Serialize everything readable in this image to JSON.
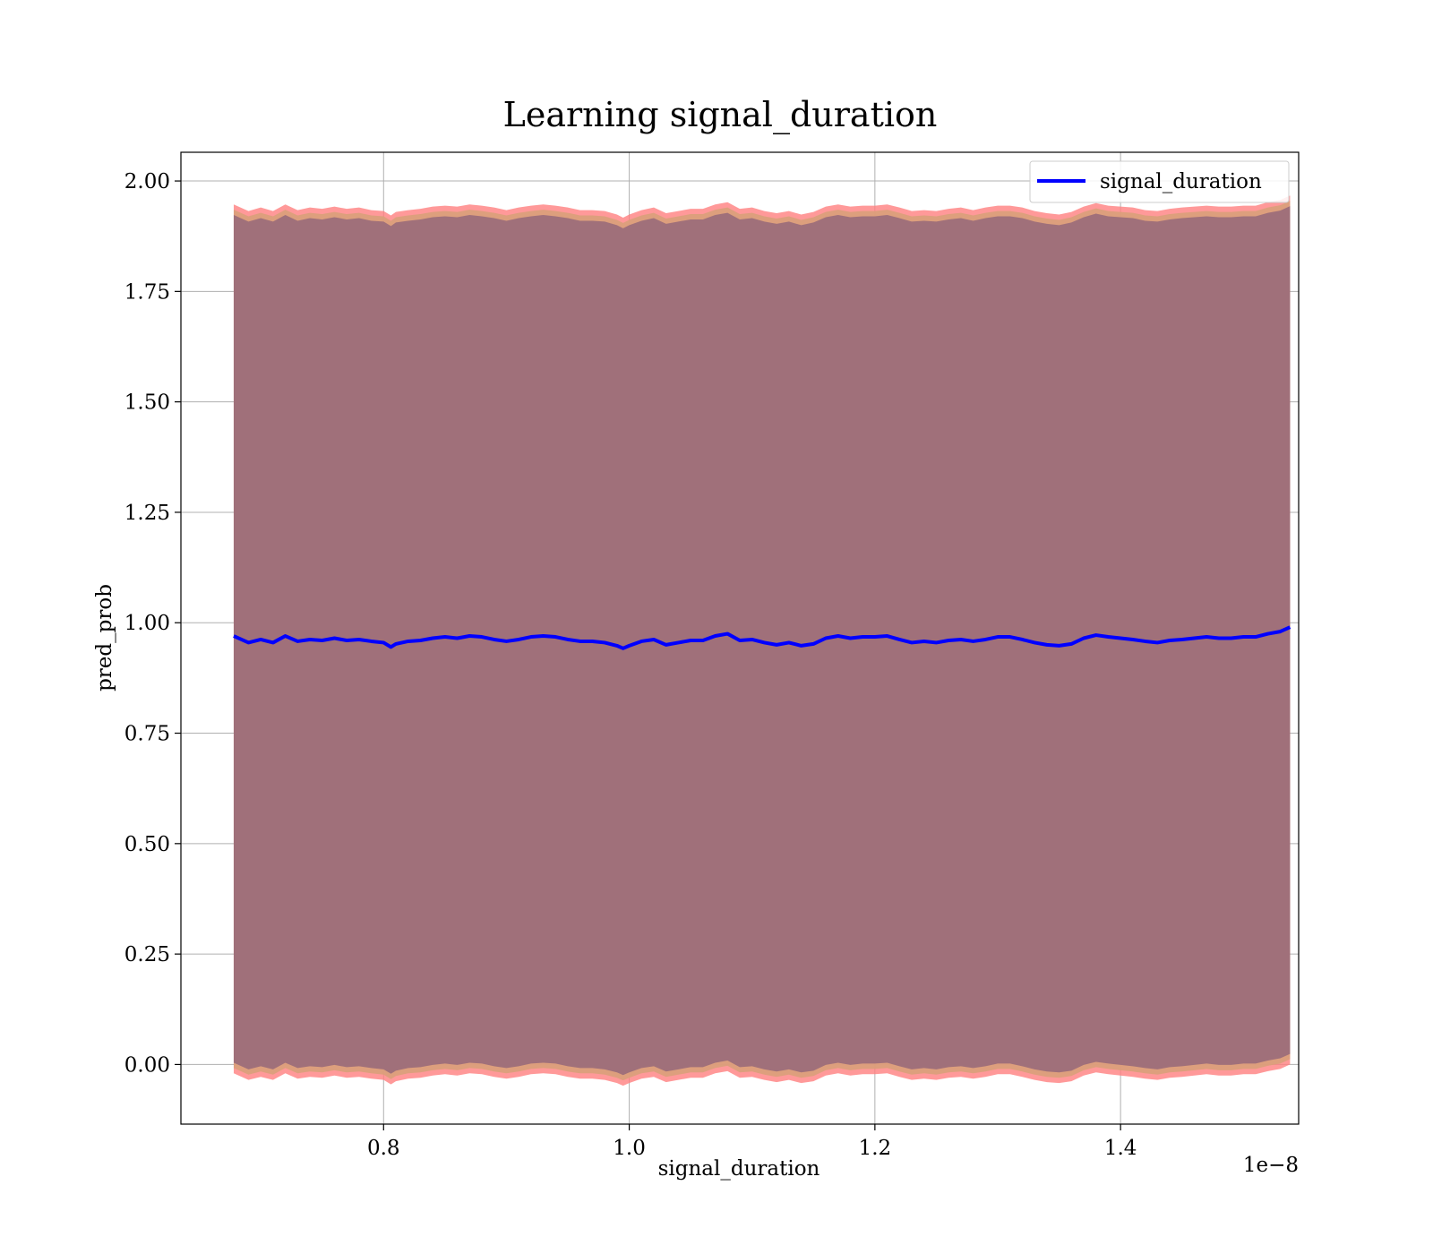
{
  "chart_data": {
    "type": "line",
    "title": "Learning signal_duration",
    "xlabel": "signal_duration",
    "ylabel": "pred_prob",
    "x_offset_text": "1e−8",
    "xlim": [
      0.635,
      1.545
    ],
    "ylim": [
      -0.135,
      2.065
    ],
    "x_ticks": [
      0.8,
      1.0,
      1.2,
      1.4
    ],
    "x_tick_labels": [
      "0.8",
      "1.0",
      "1.2",
      "1.4"
    ],
    "y_ticks": [
      0.0,
      0.25,
      0.5,
      0.75,
      1.0,
      1.25,
      1.5,
      1.75,
      2.0
    ],
    "y_tick_labels": [
      "0.00",
      "0.25",
      "0.50",
      "0.75",
      "1.00",
      "1.25",
      "1.50",
      "1.75",
      "2.00"
    ],
    "grid": true,
    "legend_position": "upper right",
    "series": [
      {
        "name": "signal_duration",
        "color": "#0000ff",
        "x": [
          0.678,
          0.69,
          0.7,
          0.71,
          0.72,
          0.73,
          0.74,
          0.75,
          0.76,
          0.77,
          0.78,
          0.79,
          0.8,
          0.806,
          0.81,
          0.82,
          0.83,
          0.84,
          0.85,
          0.86,
          0.87,
          0.88,
          0.89,
          0.9,
          0.91,
          0.92,
          0.93,
          0.94,
          0.95,
          0.96,
          0.97,
          0.98,
          0.99,
          0.995,
          1.0,
          1.01,
          1.02,
          1.03,
          1.04,
          1.05,
          1.06,
          1.07,
          1.08,
          1.09,
          1.1,
          1.11,
          1.12,
          1.13,
          1.14,
          1.15,
          1.16,
          1.17,
          1.18,
          1.19,
          1.2,
          1.21,
          1.22,
          1.23,
          1.24,
          1.25,
          1.26,
          1.27,
          1.28,
          1.29,
          1.3,
          1.31,
          1.32,
          1.33,
          1.34,
          1.35,
          1.36,
          1.37,
          1.38,
          1.39,
          1.4,
          1.41,
          1.42,
          1.43,
          1.44,
          1.45,
          1.46,
          1.47,
          1.48,
          1.49,
          1.5,
          1.51,
          1.52,
          1.53,
          1.538
        ],
        "y": [
          0.97,
          0.955,
          0.962,
          0.955,
          0.97,
          0.958,
          0.962,
          0.96,
          0.965,
          0.96,
          0.962,
          0.958,
          0.955,
          0.945,
          0.952,
          0.958,
          0.96,
          0.965,
          0.968,
          0.965,
          0.97,
          0.968,
          0.962,
          0.958,
          0.962,
          0.968,
          0.97,
          0.968,
          0.962,
          0.958,
          0.958,
          0.955,
          0.948,
          0.942,
          0.948,
          0.958,
          0.962,
          0.95,
          0.955,
          0.96,
          0.96,
          0.97,
          0.975,
          0.96,
          0.962,
          0.955,
          0.95,
          0.955,
          0.948,
          0.952,
          0.965,
          0.97,
          0.965,
          0.968,
          0.968,
          0.97,
          0.962,
          0.955,
          0.958,
          0.955,
          0.96,
          0.962,
          0.958,
          0.962,
          0.968,
          0.968,
          0.962,
          0.955,
          0.95,
          0.948,
          0.952,
          0.965,
          0.972,
          0.968,
          0.965,
          0.962,
          0.958,
          0.955,
          0.96,
          0.962,
          0.965,
          0.968,
          0.965,
          0.965,
          0.968,
          0.968,
          0.975,
          0.98,
          0.99
        ],
        "band_lower": [
          0.0,
          -0.015,
          -0.008,
          -0.015,
          0.0,
          -0.012,
          -0.008,
          -0.01,
          -0.005,
          -0.01,
          -0.008,
          -0.012,
          -0.015,
          -0.025,
          -0.018,
          -0.012,
          -0.01,
          -0.005,
          -0.002,
          -0.005,
          0.0,
          -0.002,
          -0.008,
          -0.012,
          -0.008,
          -0.002,
          0.0,
          -0.002,
          -0.008,
          -0.012,
          -0.012,
          -0.015,
          -0.022,
          -0.028,
          -0.022,
          -0.012,
          -0.008,
          -0.02,
          -0.015,
          -0.01,
          -0.01,
          0.0,
          0.005,
          -0.01,
          -0.008,
          -0.015,
          -0.02,
          -0.015,
          -0.022,
          -0.018,
          -0.005,
          0.0,
          -0.005,
          -0.002,
          -0.002,
          0.0,
          -0.008,
          -0.015,
          -0.012,
          -0.015,
          -0.01,
          -0.008,
          -0.012,
          -0.008,
          -0.002,
          -0.002,
          -0.008,
          -0.015,
          -0.02,
          -0.022,
          -0.018,
          -0.005,
          0.002,
          -0.002,
          -0.005,
          -0.008,
          -0.012,
          -0.015,
          -0.01,
          -0.008,
          -0.005,
          -0.002,
          -0.005,
          -0.005,
          -0.002,
          -0.002,
          0.005,
          0.01,
          0.02
        ],
        "band_upper": [
          1.935,
          1.92,
          1.928,
          1.92,
          1.935,
          1.922,
          1.928,
          1.925,
          1.93,
          1.925,
          1.928,
          1.922,
          1.92,
          1.91,
          1.918,
          1.922,
          1.925,
          1.93,
          1.932,
          1.93,
          1.935,
          1.932,
          1.928,
          1.922,
          1.928,
          1.932,
          1.935,
          1.932,
          1.928,
          1.922,
          1.922,
          1.92,
          1.912,
          1.905,
          1.912,
          1.922,
          1.928,
          1.915,
          1.92,
          1.925,
          1.925,
          1.935,
          1.94,
          1.925,
          1.928,
          1.92,
          1.915,
          1.92,
          1.912,
          1.918,
          1.93,
          1.935,
          1.93,
          1.932,
          1.932,
          1.935,
          1.928,
          1.92,
          1.922,
          1.92,
          1.925,
          1.928,
          1.922,
          1.928,
          1.932,
          1.932,
          1.928,
          1.92,
          1.915,
          1.912,
          1.918,
          1.93,
          1.938,
          1.932,
          1.93,
          1.928,
          1.922,
          1.92,
          1.925,
          1.928,
          1.93,
          1.932,
          1.93,
          1.93,
          1.932,
          1.932,
          1.94,
          1.945,
          1.955
        ]
      }
    ],
    "band_colors": {
      "outer": "#ff8080",
      "middle": "#d9a07a",
      "inner": "#a0707a"
    }
  }
}
